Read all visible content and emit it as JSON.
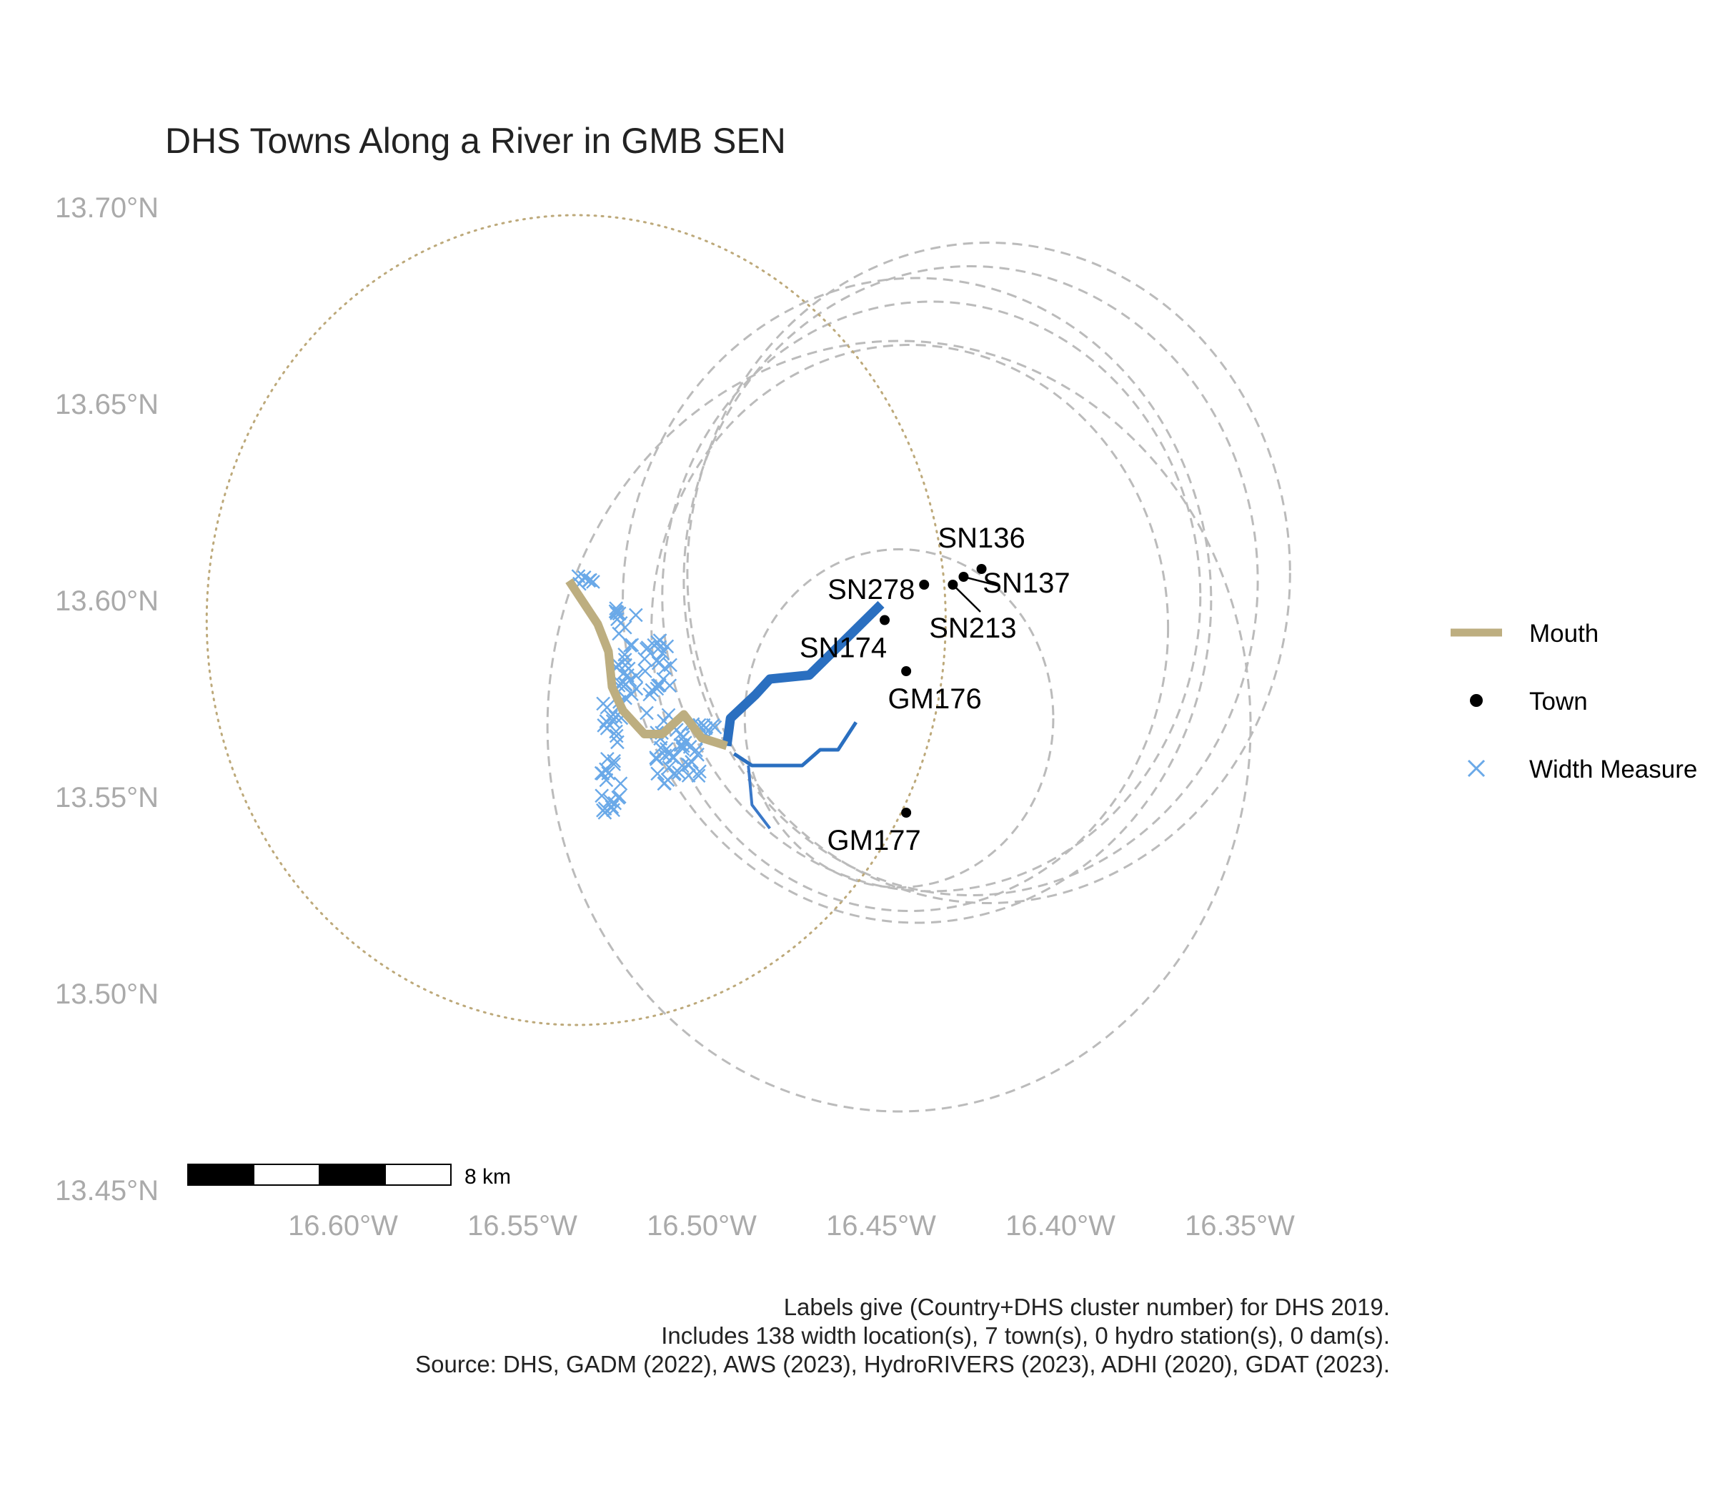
{
  "title": "DHS Towns Along a River in GMB SEN",
  "map": {
    "lon_range": [
      -16.645,
      -16.335
    ],
    "lat_range": [
      13.45,
      13.7
    ],
    "x_ticks": [
      {
        "value": -16.6,
        "label": "16.60°W"
      },
      {
        "value": -16.55,
        "label": "16.55°W"
      },
      {
        "value": -16.5,
        "label": "16.50°W"
      },
      {
        "value": -16.45,
        "label": "16.45°W"
      },
      {
        "value": -16.4,
        "label": "16.40°W"
      },
      {
        "value": -16.35,
        "label": "16.35°W"
      }
    ],
    "y_ticks": [
      {
        "value": 13.7,
        "label": "13.70°N"
      },
      {
        "value": 13.65,
        "label": "13.65°N"
      },
      {
        "value": 13.6,
        "label": "13.60°N"
      },
      {
        "value": 13.55,
        "label": "13.55°N"
      },
      {
        "value": 13.5,
        "label": "13.50°N"
      },
      {
        "value": 13.45,
        "label": "13.45°N"
      }
    ],
    "axis_color": "#aaaaaa",
    "colors": {
      "mouth": "#bdae80",
      "river": "#2a6fc0",
      "river_thin": "#3a78c8",
      "width_measure": "#6aa9e8",
      "town": "#000000",
      "buffer": "#bbbbbb",
      "mouth_buffer": "#bda97a"
    },
    "scale_bar": {
      "label": "8 km"
    }
  },
  "legend": {
    "items": [
      {
        "label": "Mouth",
        "symbol": "line",
        "color": "#bdae80"
      },
      {
        "label": "Town",
        "symbol": "dot",
        "color": "#000000"
      },
      {
        "label": "Width Measure",
        "symbol": "x",
        "color": "#6aa9e8"
      }
    ]
  },
  "caption": [
    "Labels give (Country+DHS cluster number) for DHS 2019.",
    "Includes 138 width location(s), 7 town(s), 0 hydro station(s), 0 dam(s).",
    "Source: DHS, GADM (2022), AWS (2023), HydroRIVERS (2023), ADHI (2020), GDAT (2023)."
  ],
  "chart_data": {
    "type": "map",
    "title": "DHS Towns Along a River in GMB SEN",
    "towns": [
      {
        "label": "SN136",
        "lon": -16.422,
        "lat": 13.608
      },
      {
        "label": "SN137",
        "lon": -16.427,
        "lat": 13.606
      },
      {
        "label": "SN278",
        "lon": -16.438,
        "lat": 13.604
      },
      {
        "label": "SN213",
        "lon": -16.43,
        "lat": 13.604
      },
      {
        "label": "SN174",
        "lon": -16.449,
        "lat": 13.595
      },
      {
        "label": "GM176",
        "lon": -16.443,
        "lat": 13.582
      },
      {
        "label": "GM177",
        "lon": -16.443,
        "lat": 13.546
      }
    ],
    "buffer_circles": [
      {
        "lon": -16.445,
        "lat": 13.57,
        "radius_deg": 0.043
      },
      {
        "lon": -16.442,
        "lat": 13.593,
        "radius_deg": 0.072
      },
      {
        "lon": -16.436,
        "lat": 13.601,
        "radius_deg": 0.075
      },
      {
        "lon": -16.425,
        "lat": 13.605,
        "radius_deg": 0.08
      },
      {
        "lon": -16.42,
        "lat": 13.607,
        "radius_deg": 0.084
      },
      {
        "lon": -16.44,
        "lat": 13.6,
        "radius_deg": 0.082
      },
      {
        "lon": -16.445,
        "lat": 13.568,
        "radius_deg": 0.098
      }
    ],
    "mouth_buffer": {
      "lon": -16.535,
      "lat": 13.595,
      "radius_deg": 0.103
    },
    "mouth_line": [
      [
        -16.537,
        13.605
      ],
      [
        -16.529,
        13.594
      ],
      [
        -16.526,
        13.587
      ],
      [
        -16.525,
        13.578
      ],
      [
        -16.522,
        13.572
      ],
      [
        -16.516,
        13.566
      ],
      [
        -16.511,
        13.566
      ],
      [
        -16.505,
        13.571
      ],
      [
        -16.5,
        13.565
      ],
      [
        -16.493,
        13.563
      ]
    ],
    "river_main": [
      [
        -16.493,
        13.563
      ],
      [
        -16.492,
        13.57
      ],
      [
        -16.485,
        13.576
      ],
      [
        -16.481,
        13.58
      ],
      [
        -16.47,
        13.581
      ],
      [
        -16.46,
        13.59
      ],
      [
        -16.45,
        13.599
      ]
    ],
    "river_branch_east": [
      [
        -16.491,
        13.561
      ],
      [
        -16.486,
        13.558
      ],
      [
        -16.472,
        13.558
      ],
      [
        -16.467,
        13.562
      ],
      [
        -16.462,
        13.562
      ],
      [
        -16.457,
        13.569
      ]
    ],
    "river_branch_south": [
      [
        -16.487,
        13.558
      ],
      [
        -16.486,
        13.548
      ],
      [
        -16.481,
        13.542
      ]
    ],
    "width_measures_count": 138,
    "towns_count": 7
  }
}
